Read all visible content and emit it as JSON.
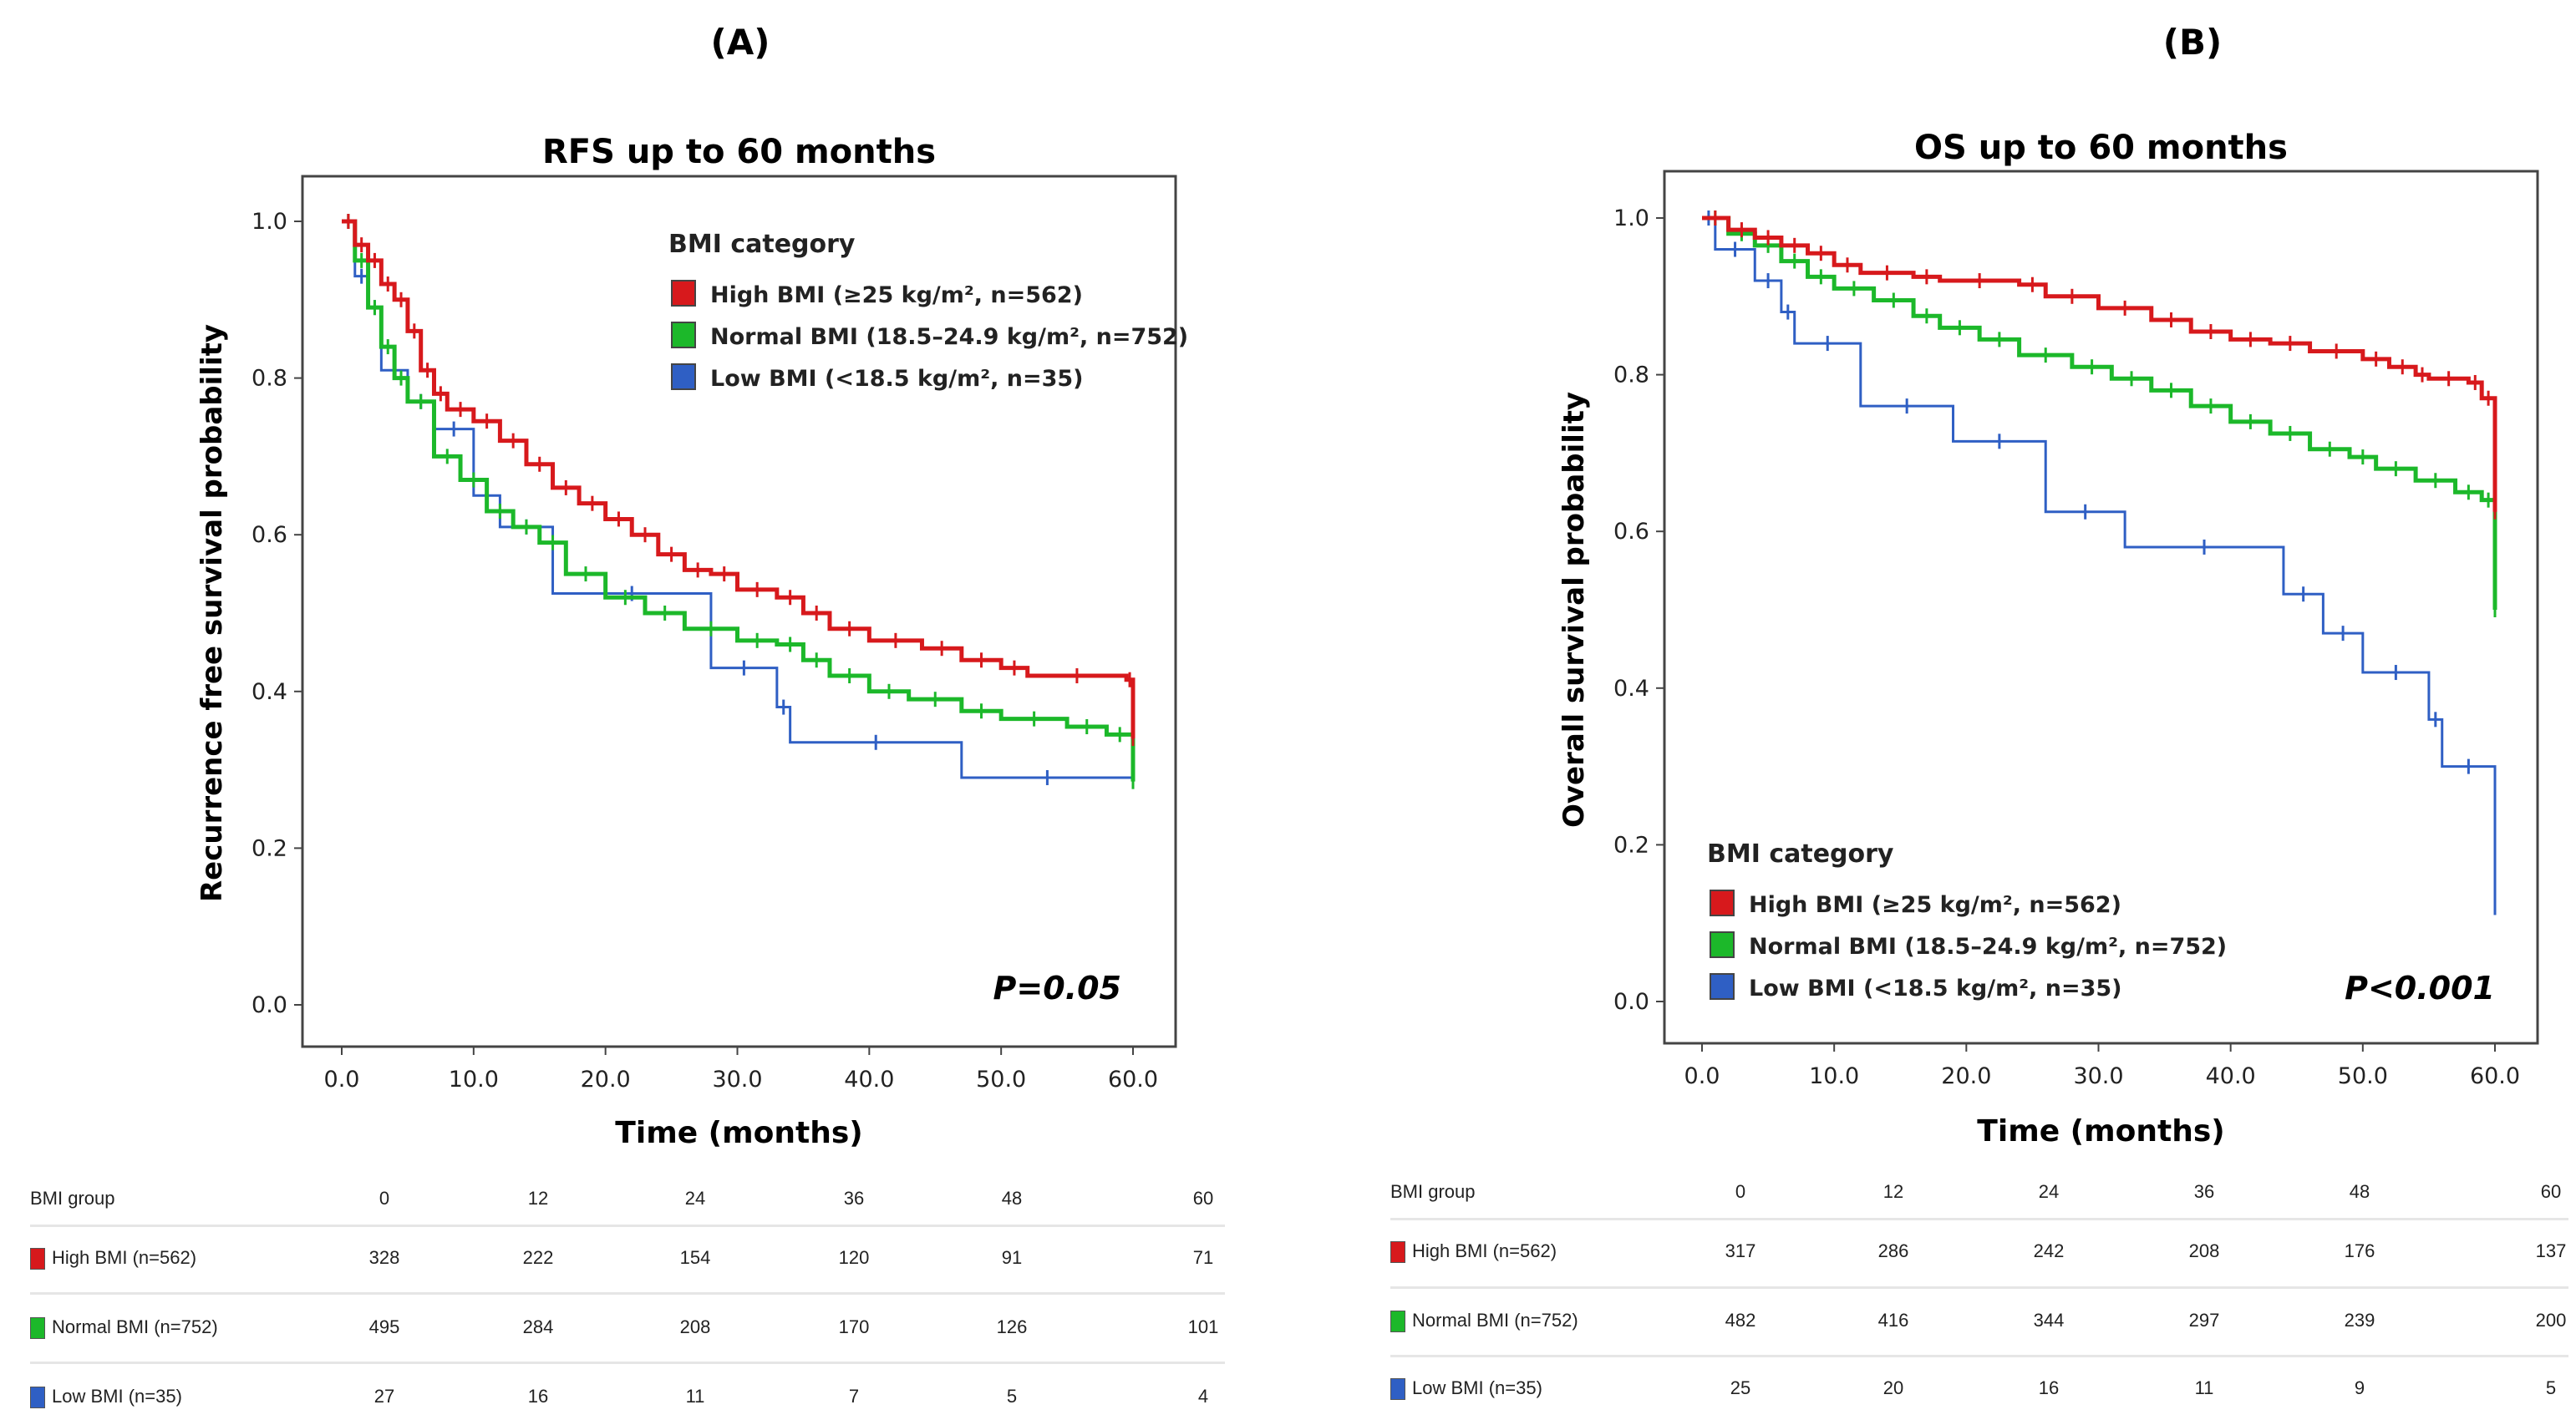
{
  "colors": {
    "high": "#d7191c",
    "normal": "#1cb82a",
    "low": "#2f5fc4",
    "axis": "#444444"
  },
  "chart_data": [
    {
      "type": "line",
      "panel": "(A)",
      "title": "RFS up to 60 months",
      "xlabel": "Time (months)",
      "ylabel": "Recurrence free survival probability",
      "xlim": [
        0,
        60
      ],
      "ylim": [
        0,
        1
      ],
      "xticks": [
        "0.0",
        "10.0",
        "20.0",
        "30.0",
        "40.0",
        "50.0",
        "60.0"
      ],
      "yticks": [
        "0.0",
        "0.2",
        "0.4",
        "0.6",
        "0.8",
        "1.0"
      ],
      "legend_title": "BMI category",
      "legend_position": "top-right",
      "p_value": "P=0.05",
      "series": [
        {
          "key": "high",
          "name": "High BMI (≥25 kg/m², n=562)",
          "steps": [
            [
              0,
              1.0
            ],
            [
              1,
              0.97
            ],
            [
              2,
              0.95
            ],
            [
              3,
              0.92
            ],
            [
              4,
              0.9
            ],
            [
              5,
              0.86
            ],
            [
              6,
              0.81
            ],
            [
              7,
              0.78
            ],
            [
              8,
              0.76
            ],
            [
              10,
              0.745
            ],
            [
              12,
              0.72
            ],
            [
              14,
              0.69
            ],
            [
              16,
              0.66
            ],
            [
              18,
              0.64
            ],
            [
              20,
              0.62
            ],
            [
              22,
              0.6
            ],
            [
              24,
              0.575
            ],
            [
              26,
              0.555
            ],
            [
              28,
              0.55
            ],
            [
              30,
              0.53
            ],
            [
              33,
              0.52
            ],
            [
              35,
              0.5
            ],
            [
              37,
              0.48
            ],
            [
              40,
              0.465
            ],
            [
              44,
              0.455
            ],
            [
              47,
              0.44
            ],
            [
              50,
              0.43
            ],
            [
              52,
              0.42
            ],
            [
              59.5,
              0.415
            ],
            [
              60,
              0.34
            ]
          ]
        },
        {
          "key": "normal",
          "name": "Normal BMI (18.5–24.9 kg/m², n=752)",
          "steps": [
            [
              0,
              1.0
            ],
            [
              1,
              0.95
            ],
            [
              2,
              0.89
            ],
            [
              3,
              0.84
            ],
            [
              4,
              0.8
            ],
            [
              5,
              0.77
            ],
            [
              7,
              0.7
            ],
            [
              9,
              0.67
            ],
            [
              11,
              0.63
            ],
            [
              13,
              0.61
            ],
            [
              15,
              0.59
            ],
            [
              17,
              0.55
            ],
            [
              20,
              0.52
            ],
            [
              23,
              0.5
            ],
            [
              26,
              0.48
            ],
            [
              30,
              0.465
            ],
            [
              33,
              0.46
            ],
            [
              35,
              0.44
            ],
            [
              37,
              0.42
            ],
            [
              40,
              0.4
            ],
            [
              43,
              0.39
            ],
            [
              47,
              0.375
            ],
            [
              50,
              0.365
            ],
            [
              55,
              0.355
            ],
            [
              58,
              0.345
            ],
            [
              60,
              0.285
            ]
          ]
        },
        {
          "key": "low",
          "name": "Low BMI (<18.5 kg/m², n=35)",
          "steps": [
            [
              0,
              1.0
            ],
            [
              1,
              0.93
            ],
            [
              2,
              0.89
            ],
            [
              3,
              0.81
            ],
            [
              5,
              0.77
            ],
            [
              7,
              0.735
            ],
            [
              10,
              0.65
            ],
            [
              12,
              0.61
            ],
            [
              16,
              0.525
            ],
            [
              28,
              0.43
            ],
            [
              33,
              0.38
            ],
            [
              34,
              0.335
            ],
            [
              47,
              0.29
            ],
            [
              60,
              0.29
            ]
          ]
        }
      ]
    },
    {
      "type": "line",
      "panel": "(B)",
      "title": "OS up to 60 months",
      "xlabel": "Time (months)",
      "ylabel": "Overall survival probability",
      "xlim": [
        0,
        60
      ],
      "ylim": [
        0,
        1
      ],
      "xticks": [
        "0.0",
        "10.0",
        "20.0",
        "30.0",
        "40.0",
        "50.0",
        "60.0"
      ],
      "yticks": [
        "0.0",
        "0.2",
        "0.4",
        "0.6",
        "0.8",
        "1.0"
      ],
      "legend_title": "BMI category",
      "legend_position": "bottom-left",
      "p_value": "P<0.001",
      "series": [
        {
          "key": "high",
          "name": "High BMI (≥25 kg/m², n=562)",
          "steps": [
            [
              0,
              1.0
            ],
            [
              2,
              0.985
            ],
            [
              4,
              0.975
            ],
            [
              6,
              0.965
            ],
            [
              8,
              0.955
            ],
            [
              10,
              0.94
            ],
            [
              12,
              0.93
            ],
            [
              16,
              0.925
            ],
            [
              18,
              0.92
            ],
            [
              24,
              0.915
            ],
            [
              26,
              0.9
            ],
            [
              30,
              0.885
            ],
            [
              34,
              0.87
            ],
            [
              37,
              0.855
            ],
            [
              40,
              0.845
            ],
            [
              43,
              0.84
            ],
            [
              46,
              0.83
            ],
            [
              50,
              0.82
            ],
            [
              52,
              0.81
            ],
            [
              54,
              0.8
            ],
            [
              55,
              0.795
            ],
            [
              58,
              0.79
            ],
            [
              59,
              0.77
            ],
            [
              60,
              0.625
            ]
          ]
        },
        {
          "key": "normal",
          "name": "Normal BMI (18.5–24.9 kg/m², n=752)",
          "steps": [
            [
              0,
              1.0
            ],
            [
              2,
              0.98
            ],
            [
              4,
              0.965
            ],
            [
              6,
              0.945
            ],
            [
              8,
              0.925
            ],
            [
              10,
              0.91
            ],
            [
              13,
              0.895
            ],
            [
              16,
              0.875
            ],
            [
              18,
              0.86
            ],
            [
              21,
              0.845
            ],
            [
              24,
              0.825
            ],
            [
              28,
              0.81
            ],
            [
              31,
              0.795
            ],
            [
              34,
              0.78
            ],
            [
              37,
              0.76
            ],
            [
              40,
              0.74
            ],
            [
              43,
              0.725
            ],
            [
              46,
              0.705
            ],
            [
              49,
              0.695
            ],
            [
              51,
              0.68
            ],
            [
              54,
              0.665
            ],
            [
              57,
              0.65
            ],
            [
              59,
              0.64
            ],
            [
              60,
              0.5
            ]
          ]
        },
        {
          "key": "low",
          "name": "Low BMI (<18.5 kg/m², n=35)",
          "steps": [
            [
              0,
              1.0
            ],
            [
              1,
              0.96
            ],
            [
              4,
              0.92
            ],
            [
              6,
              0.88
            ],
            [
              7,
              0.84
            ],
            [
              12,
              0.76
            ],
            [
              19,
              0.715
            ],
            [
              26,
              0.625
            ],
            [
              32,
              0.58
            ],
            [
              44,
              0.52
            ],
            [
              47,
              0.47
            ],
            [
              50,
              0.42
            ],
            [
              55,
              0.36
            ],
            [
              56,
              0.3
            ],
            [
              60,
              0.12
            ]
          ]
        }
      ]
    }
  ],
  "risk_tables": [
    {
      "header": "BMI group",
      "times": [
        "0",
        "12",
        "24",
        "36",
        "48",
        "60"
      ],
      "rows": [
        {
          "key": "high",
          "label": "High BMI (n=562)",
          "values": [
            "328",
            "222",
            "154",
            "120",
            "91",
            "71"
          ]
        },
        {
          "key": "normal",
          "label": "Normal BMI (n=752)",
          "values": [
            "495",
            "284",
            "208",
            "170",
            "126",
            "101"
          ]
        },
        {
          "key": "low",
          "label": "Low BMI (n=35)",
          "values": [
            "27",
            "16",
            "11",
            "7",
            "5",
            "4"
          ]
        }
      ]
    },
    {
      "header": "BMI group",
      "times": [
        "0",
        "12",
        "24",
        "36",
        "48",
        "60"
      ],
      "rows": [
        {
          "key": "high",
          "label": "High BMI (n=562)",
          "values": [
            "317",
            "286",
            "242",
            "208",
            "176",
            "137"
          ]
        },
        {
          "key": "normal",
          "label": "Normal BMI (n=752)",
          "values": [
            "482",
            "416",
            "344",
            "297",
            "239",
            "200"
          ]
        },
        {
          "key": "low",
          "label": "Low BMI (n=35)",
          "values": [
            "25",
            "20",
            "16",
            "11",
            "9",
            "5"
          ]
        }
      ]
    }
  ]
}
